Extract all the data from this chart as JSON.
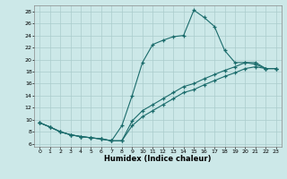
{
  "xlabel": "Humidex (Indice chaleur)",
  "bg_color": "#cce8e8",
  "line_color": "#1a6b6b",
  "grid_color": "#aacccc",
  "xlim": [
    -0.5,
    23.5
  ],
  "ylim": [
    5.5,
    29.0
  ],
  "yticks": [
    6,
    8,
    10,
    12,
    14,
    16,
    18,
    20,
    22,
    24,
    26,
    28
  ],
  "xticks": [
    0,
    1,
    2,
    3,
    4,
    5,
    6,
    7,
    8,
    9,
    10,
    11,
    12,
    13,
    14,
    15,
    16,
    17,
    18,
    19,
    20,
    21,
    22,
    23
  ],
  "line1_x": [
    0,
    1,
    2,
    3,
    4,
    5,
    6,
    7,
    8,
    9,
    10,
    11,
    12,
    13,
    14,
    15,
    16,
    17,
    18,
    19,
    20,
    21,
    22,
    23
  ],
  "line1_y": [
    9.5,
    8.8,
    8.0,
    7.5,
    7.2,
    7.0,
    6.8,
    6.5,
    9.0,
    14.0,
    19.5,
    22.5,
    23.2,
    23.8,
    24.0,
    28.2,
    27.0,
    25.5,
    21.5,
    19.5,
    19.5,
    19.2,
    18.5,
    18.5
  ],
  "line2_x": [
    0,
    1,
    2,
    3,
    4,
    5,
    6,
    7,
    8,
    9,
    10,
    11,
    12,
    13,
    14,
    15,
    16,
    17,
    18,
    19,
    20,
    21,
    22,
    23
  ],
  "line2_y": [
    9.5,
    8.8,
    8.0,
    7.5,
    7.2,
    7.0,
    6.8,
    6.5,
    6.5,
    9.8,
    11.5,
    12.5,
    13.5,
    14.5,
    15.5,
    16.0,
    16.8,
    17.5,
    18.2,
    18.8,
    19.5,
    19.5,
    18.5,
    18.5
  ],
  "line3_x": [
    0,
    1,
    2,
    3,
    4,
    5,
    6,
    7,
    8,
    9,
    10,
    11,
    12,
    13,
    14,
    15,
    16,
    17,
    18,
    19,
    20,
    21,
    22,
    23
  ],
  "line3_y": [
    9.5,
    8.8,
    8.0,
    7.5,
    7.2,
    7.0,
    6.8,
    6.5,
    6.5,
    9.0,
    10.5,
    11.5,
    12.5,
    13.5,
    14.5,
    15.0,
    15.8,
    16.5,
    17.2,
    17.8,
    18.5,
    18.8,
    18.5,
    18.5
  ]
}
